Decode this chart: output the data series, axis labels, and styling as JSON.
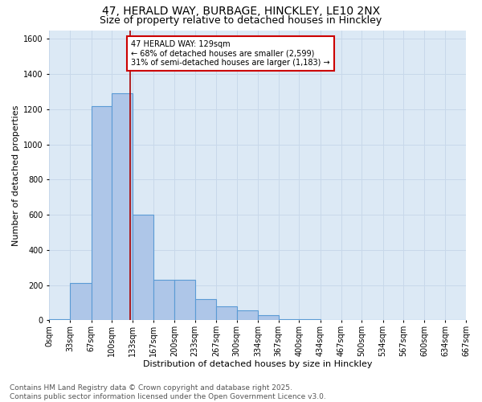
{
  "title_line1": "47, HERALD WAY, BURBAGE, HINCKLEY, LE10 2NX",
  "title_line2": "Size of property relative to detached houses in Hinckley",
  "xlabel": "Distribution of detached houses by size in Hinckley",
  "ylabel": "Number of detached properties",
  "bar_edges": [
    0,
    33,
    67,
    100,
    133,
    167,
    200,
    233,
    267,
    300,
    334,
    367,
    400,
    434,
    467,
    500,
    534,
    567,
    600,
    634,
    667
  ],
  "bar_heights": [
    5,
    210,
    1220,
    1290,
    600,
    230,
    230,
    120,
    80,
    55,
    30,
    8,
    5,
    0,
    0,
    0,
    0,
    0,
    0,
    0
  ],
  "bar_color": "#aec6e8",
  "bar_edge_color": "#5b9bd5",
  "grid_color": "#c8d8ea",
  "bg_color": "#dce9f5",
  "vline_x": 129,
  "vline_color": "#aa0000",
  "annotation_text": "47 HERALD WAY: 129sqm\n← 68% of detached houses are smaller (2,599)\n31% of semi-detached houses are larger (1,183) →",
  "annotation_box_color": "#cc0000",
  "ylim": [
    0,
    1650
  ],
  "yticks": [
    0,
    200,
    400,
    600,
    800,
    1000,
    1200,
    1400,
    1600
  ],
  "tick_labels": [
    "0sqm",
    "33sqm",
    "67sqm",
    "100sqm",
    "133sqm",
    "167sqm",
    "200sqm",
    "233sqm",
    "267sqm",
    "300sqm",
    "334sqm",
    "367sqm",
    "400sqm",
    "434sqm",
    "467sqm",
    "500sqm",
    "534sqm",
    "567sqm",
    "600sqm",
    "634sqm",
    "667sqm"
  ],
  "footer_line1": "Contains HM Land Registry data © Crown copyright and database right 2025.",
  "footer_line2": "Contains public sector information licensed under the Open Government Licence v3.0.",
  "title_fontsize": 10,
  "subtitle_fontsize": 9,
  "label_fontsize": 8,
  "tick_fontsize": 7,
  "footer_fontsize": 6.5
}
